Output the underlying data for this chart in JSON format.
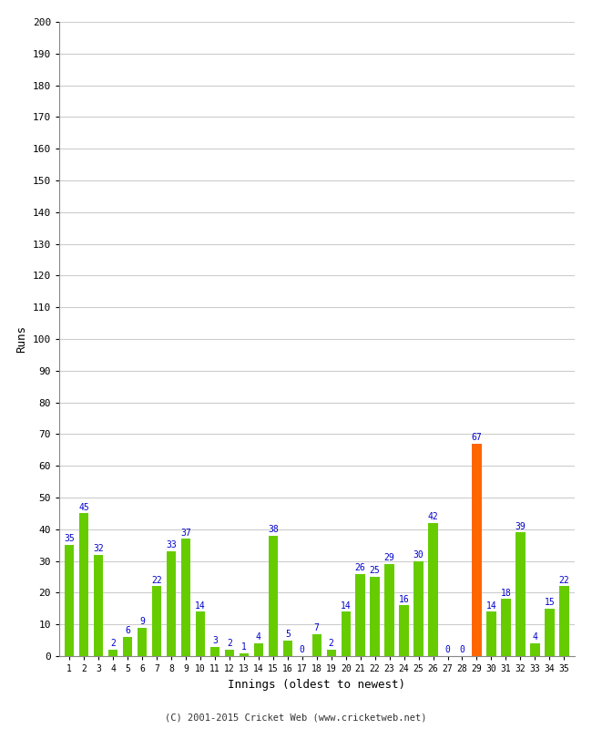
{
  "xlabel": "Innings (oldest to newest)",
  "ylabel": "Runs",
  "background_color": "#ffffff",
  "plot_background": "#ffffff",
  "grid_color": "#cccccc",
  "ylim": [
    0,
    200
  ],
  "yticks": [
    0,
    10,
    20,
    30,
    40,
    50,
    60,
    70,
    80,
    90,
    100,
    110,
    120,
    130,
    140,
    150,
    160,
    170,
    180,
    190,
    200
  ],
  "innings": [
    1,
    2,
    3,
    4,
    5,
    6,
    7,
    8,
    9,
    10,
    11,
    12,
    13,
    14,
    15,
    16,
    17,
    18,
    19,
    20,
    21,
    22,
    23,
    24,
    25,
    26,
    27,
    28,
    29,
    30,
    31,
    32,
    33,
    34,
    35
  ],
  "values": [
    35,
    45,
    32,
    2,
    6,
    9,
    22,
    33,
    37,
    14,
    3,
    2,
    1,
    4,
    38,
    5,
    0,
    7,
    2,
    14,
    26,
    25,
    29,
    16,
    30,
    42,
    0,
    0,
    67,
    14,
    18,
    39,
    4,
    15,
    22
  ],
  "colors": [
    "#66cc00",
    "#66cc00",
    "#66cc00",
    "#66cc00",
    "#66cc00",
    "#66cc00",
    "#66cc00",
    "#66cc00",
    "#66cc00",
    "#66cc00",
    "#66cc00",
    "#66cc00",
    "#66cc00",
    "#66cc00",
    "#66cc00",
    "#66cc00",
    "#66cc00",
    "#66cc00",
    "#66cc00",
    "#66cc00",
    "#66cc00",
    "#66cc00",
    "#66cc00",
    "#66cc00",
    "#66cc00",
    "#66cc00",
    "#66cc00",
    "#66cc00",
    "#ff6600",
    "#66cc00",
    "#66cc00",
    "#66cc00",
    "#66cc00",
    "#66cc00",
    "#66cc00"
  ],
  "label_color": "#0000cc",
  "label_fontsize": 7,
  "footer": "(C) 2001-2015 Cricket Web (www.cricketweb.net)",
  "bar_width": 0.65
}
